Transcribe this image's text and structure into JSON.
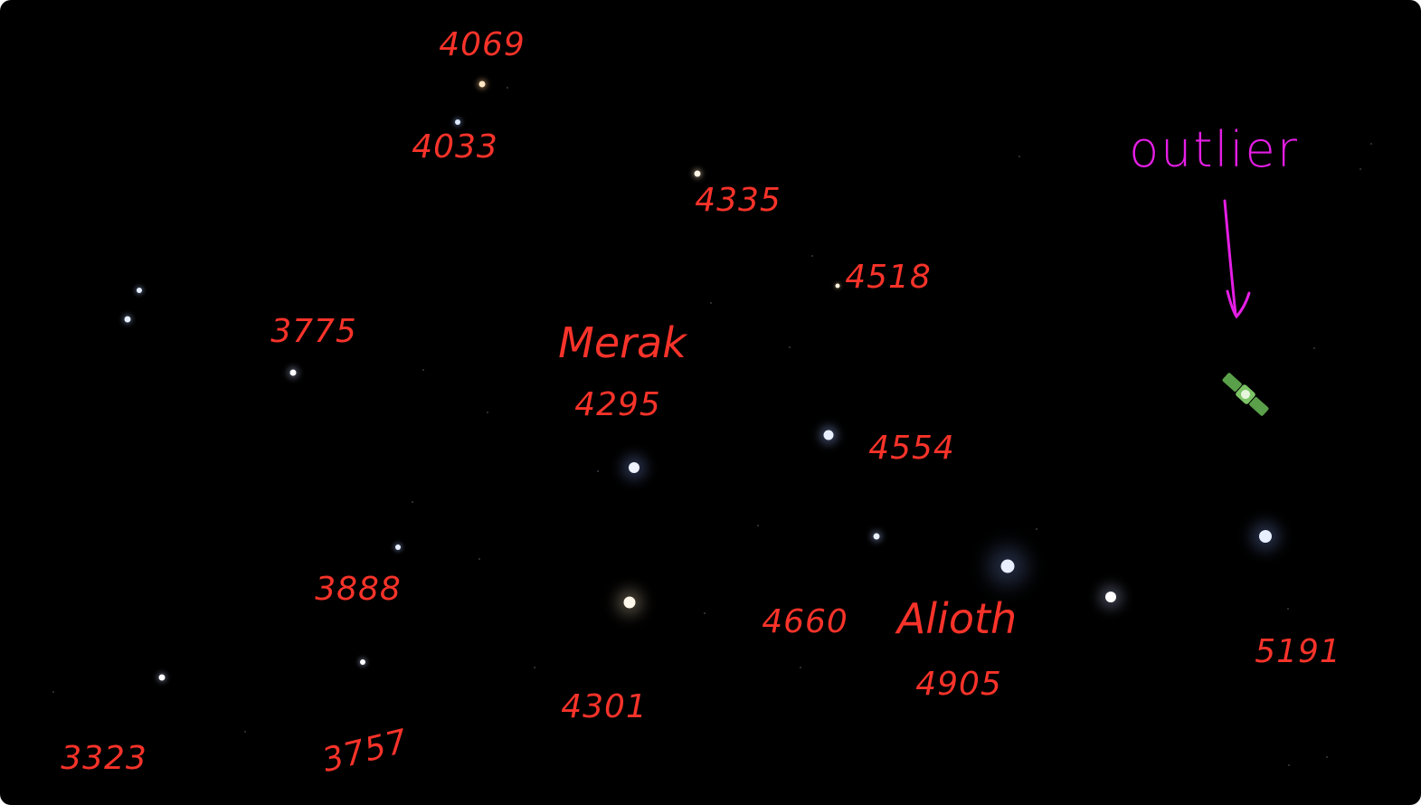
{
  "annotation_color": "#f8332a",
  "outlier_color": "#e51ee5",
  "labels": {
    "n4069": "4069",
    "n4033": "4033",
    "n4335": "4335",
    "n4518": "4518",
    "n3775": "3775",
    "merak_name": "Merak",
    "merak_num": "4295",
    "n4554": "4554",
    "n3888": "3888",
    "n4660": "4660",
    "alioth_name": "Alioth",
    "alioth_num": "4905",
    "n5191": "5191",
    "n4301": "4301",
    "n3323": "3323",
    "n3757": "3757",
    "outlier": "outlier"
  },
  "objects": {
    "satellite": "satellite-icon",
    "arrow": "down-arrow-icon"
  }
}
